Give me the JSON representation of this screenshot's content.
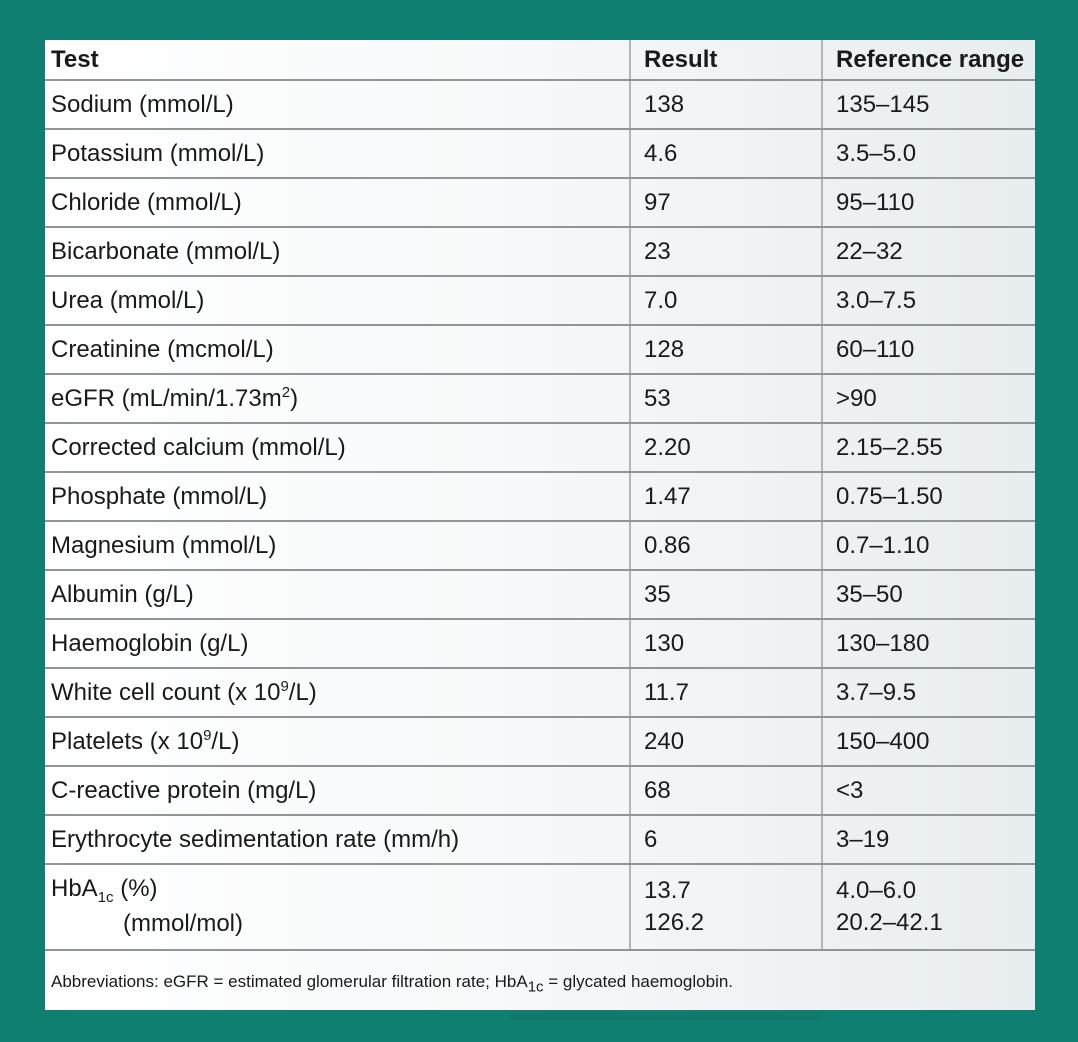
{
  "headers": {
    "test": "Test",
    "result": "Result",
    "reference": "Reference range"
  },
  "rows": [
    {
      "test": "Sodium (mmol/L)",
      "result": "138",
      "ref": "135–145"
    },
    {
      "test": "Potassium (mmol/L)",
      "result": "4.6",
      "ref": "3.5–5.0"
    },
    {
      "test": "Chloride (mmol/L)",
      "result": "97",
      "ref": "95–110"
    },
    {
      "test": "Bicarbonate (mmol/L)",
      "result": "23",
      "ref": "22–32"
    },
    {
      "test": "Urea (mmol/L)",
      "result": "7.0",
      "ref": "3.0–7.5"
    },
    {
      "test": "Creatinine (mcmol/L)",
      "result": "128",
      "ref": "60–110"
    },
    {
      "test_pre": "eGFR (mL/min/1.73m",
      "test_sup": "2",
      "test_post": ")",
      "result": "53",
      "ref": ">90"
    },
    {
      "test": "Corrected calcium (mmol/L)",
      "result": "2.20",
      "ref": "2.15–2.55"
    },
    {
      "test": "Phosphate (mmol/L)",
      "result": "1.47",
      "ref": "0.75–1.50"
    },
    {
      "test": "Magnesium (mmol/L)",
      "result": "0.86",
      "ref": "0.7–1.10"
    },
    {
      "test": "Albumin (g/L)",
      "result": "35",
      "ref": "35–50"
    },
    {
      "test": "Haemoglobin (g/L)",
      "result": "130",
      "ref": "130–180"
    },
    {
      "test_pre": "White cell count (x 10",
      "test_sup": "9",
      "test_post": "/L)",
      "result": "11.7",
      "ref": "3.7–9.5"
    },
    {
      "test_pre": "Platelets (x 10",
      "test_sup": "9",
      "test_post": "/L)",
      "result": "240",
      "ref": "150–400"
    },
    {
      "test": "C-reactive protein (mg/L)",
      "result": "68",
      "ref": "<3"
    },
    {
      "test": "Erythrocyte sedimentation rate (mm/h)",
      "result": "6",
      "ref": "3–19"
    }
  ],
  "hba1c": {
    "label_pre": "HbA",
    "label_sub": "1c",
    "label_post": " (%)",
    "label2": "(mmol/mol)",
    "result1": "13.7",
    "result2": "126.2",
    "ref1": "4.0–6.0",
    "ref2": "20.2–42.1"
  },
  "footnote": {
    "pre": "Abbreviations: eGFR = estimated glomerular filtration rate; HbA",
    "sub": "1c",
    "post": " = glycated haemoglobin."
  }
}
